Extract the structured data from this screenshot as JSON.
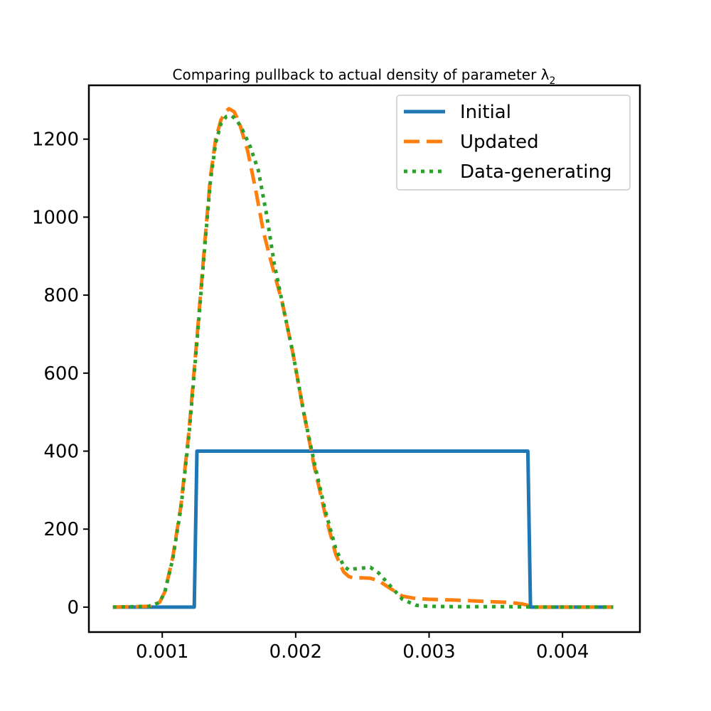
{
  "chart_data": {
    "type": "line",
    "title_main": "Comparing pullback to actual density of parameter λ",
    "title_subscript": "2",
    "xlabel": "",
    "ylabel": "",
    "xlim": [
      0.00045,
      0.00458
    ],
    "ylim": [
      -64,
      1338
    ],
    "xticks": [
      0.001,
      0.002,
      0.003,
      0.004
    ],
    "xtick_labels": [
      "0.001",
      "0.002",
      "0.003",
      "0.004"
    ],
    "yticks": [
      0,
      200,
      400,
      600,
      800,
      1000,
      1200
    ],
    "ytick_labels": [
      "0",
      "200",
      "400",
      "600",
      "800",
      "1000",
      "1200"
    ],
    "grid": false,
    "legend_position": "top-right",
    "series": [
      {
        "name": "Initial",
        "color": "#1f77b4",
        "style": "solid",
        "x": [
          0.00063,
          0.00124,
          0.00126,
          0.00374,
          0.00376,
          0.00438
        ],
        "y": [
          0,
          0,
          400,
          400,
          0,
          0
        ]
      },
      {
        "name": "Updated",
        "color": "#ff7f0e",
        "style": "dashed",
        "x": [
          0.00063,
          0.0009,
          0.00098,
          0.00102,
          0.00108,
          0.00114,
          0.0012,
          0.00126,
          0.00132,
          0.00136,
          0.0014,
          0.00144,
          0.00148,
          0.0015,
          0.00154,
          0.00158,
          0.00164,
          0.0017,
          0.00176,
          0.00182,
          0.0019,
          0.00198,
          0.00206,
          0.00214,
          0.00222,
          0.0023,
          0.00236,
          0.0024,
          0.00244,
          0.0025,
          0.00256,
          0.00262,
          0.0027,
          0.0028,
          0.0029,
          0.003,
          0.0032,
          0.0034,
          0.0036,
          0.0037,
          0.00376,
          0.0038,
          0.00438
        ],
        "y": [
          0,
          2,
          12,
          40,
          130,
          260,
          450,
          690,
          940,
          1100,
          1200,
          1250,
          1272,
          1278,
          1270,
          1240,
          1170,
          1070,
          960,
          880,
          780,
          650,
          500,
          360,
          240,
          135,
          90,
          78,
          75,
          75,
          74,
          68,
          50,
          28,
          22,
          20,
          18,
          15,
          12,
          8,
          3,
          0,
          0
        ]
      },
      {
        "name": "Data-generating",
        "color": "#2ca02c",
        "style": "dotted",
        "x": [
          0.00063,
          0.0009,
          0.00098,
          0.00102,
          0.00108,
          0.00114,
          0.0012,
          0.00126,
          0.00132,
          0.00136,
          0.0014,
          0.00144,
          0.00148,
          0.00152,
          0.00156,
          0.0016,
          0.00166,
          0.00172,
          0.00178,
          0.00184,
          0.0019,
          0.00198,
          0.00206,
          0.00214,
          0.00222,
          0.0023,
          0.00236,
          0.0024,
          0.00244,
          0.0025,
          0.00256,
          0.00262,
          0.0027,
          0.0028,
          0.0029,
          0.003,
          0.0032,
          0.0034,
          0.0036,
          0.0038,
          0.00438
        ],
        "y": [
          0,
          2,
          12,
          40,
          125,
          255,
          440,
          680,
          930,
          1090,
          1190,
          1240,
          1258,
          1260,
          1248,
          1225,
          1180,
          1120,
          1010,
          880,
          780,
          650,
          500,
          370,
          250,
          150,
          105,
          95,
          98,
          100,
          102,
          88,
          58,
          20,
          5,
          2,
          1,
          1,
          1,
          0,
          0
        ]
      }
    ]
  }
}
